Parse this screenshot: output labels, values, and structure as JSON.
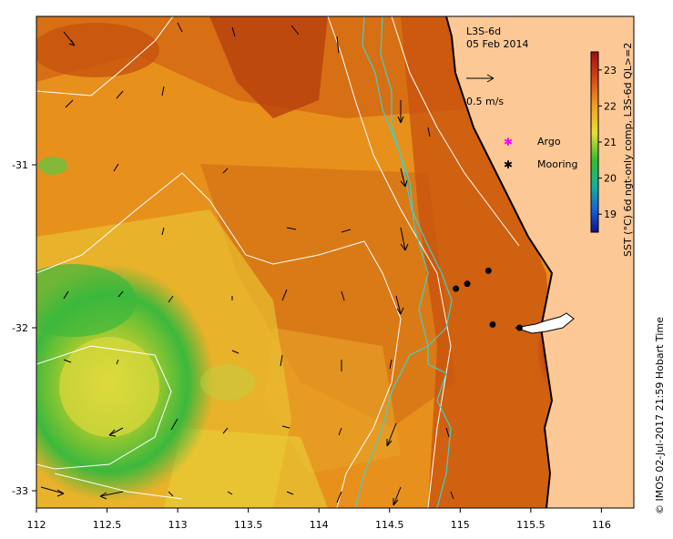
{
  "product": "L3S-6d",
  "date": "05 Feb 2014",
  "velocity_scale_label": "0.5 m/s",
  "legend": {
    "argo_label": "Argo",
    "mooring_label": "Mooring",
    "argo_color": "#ff00ff",
    "mooring_color": "#000000"
  },
  "colorbar": {
    "title": "SST (°C) 6d ngt-only comp, L3S-6d QL>=2",
    "ticks": [
      "23",
      "22",
      "21",
      "20",
      "19"
    ],
    "min": 18.5,
    "max": 23.5
  },
  "axes": {
    "x_ticks": [
      "112",
      "112.5",
      "113",
      "113.5",
      "114",
      "114.5",
      "115",
      "115.5",
      "116"
    ],
    "y_ticks": [
      "-31",
      "-32",
      "-33"
    ]
  },
  "credit": "© IMOS 02-Jul-2017 21:59 Hobart Time",
  "moorings": [
    {
      "lon": 115.2,
      "lat": -31.65
    },
    {
      "lon": 115.05,
      "lat": -31.73
    },
    {
      "lon": 114.97,
      "lat": -31.76
    },
    {
      "lon": 115.23,
      "lat": -31.98
    },
    {
      "lon": 115.42,
      "lat": -32.0
    }
  ],
  "colors": {
    "land": "#fcc896",
    "coast": "#000000",
    "contour_white": "#ffffff",
    "contour_cyan": "#40d0c8"
  }
}
